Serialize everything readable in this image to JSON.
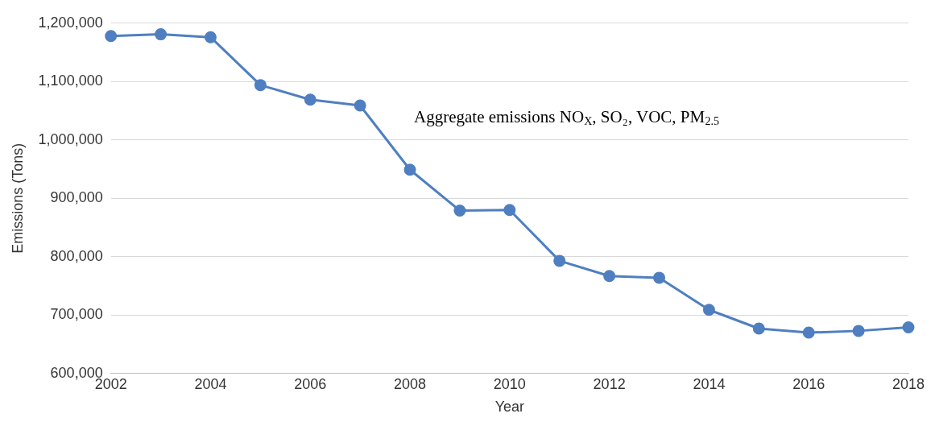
{
  "chart_data": {
    "type": "line",
    "xlabel": "Year",
    "ylabel": "Emissions (Tons)",
    "annotations": [
      "Aggregate emissions NO$_{X}$, SO₂, VOC, PM$_{2.5}$"
    ],
    "x": [
      2002,
      2003,
      2004,
      2005,
      2006,
      2007,
      2008,
      2009,
      2010,
      2011,
      2012,
      2013,
      2014,
      2015,
      2016,
      2017,
      2018
    ],
    "series": [
      {
        "color": "#4f7fc0",
        "values": [
          1178000,
          1181000,
          1176000,
          1094000,
          1069000,
          1059000,
          949000,
          879000,
          880000,
          793000,
          767000,
          764000,
          709000,
          677000,
          670000,
          673000,
          679000
        ]
      }
    ],
    "xlim": [
      2002,
      2018
    ],
    "xticks": [
      2002,
      2004,
      2006,
      2008,
      2010,
      2012,
      2014,
      2016,
      2018
    ],
    "ylim": [
      600000,
      1200000
    ],
    "yticks": [
      {
        "value": 600000,
        "label": "600,000"
      },
      {
        "value": 700000,
        "label": "700,000"
      },
      {
        "value": 800000,
        "label": "800,000"
      },
      {
        "value": 900000,
        "label": "900,000"
      },
      {
        "value": 1000000,
        "label": "1,000,000"
      },
      {
        "value": 1100000,
        "label": "1,100,000"
      },
      {
        "value": 1200000,
        "label": "1,200,000"
      }
    ],
    "grid": "y",
    "legend": false,
    "marker": "circle",
    "line_style": "solid"
  }
}
